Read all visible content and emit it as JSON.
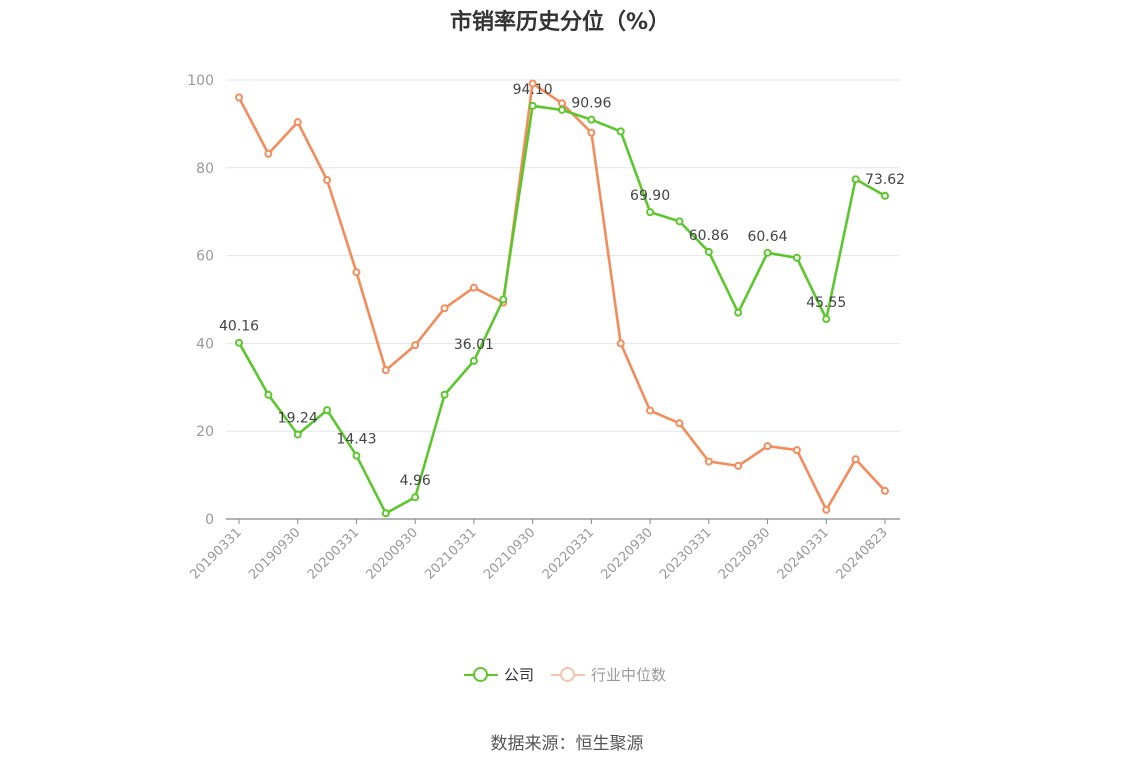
{
  "title": "市销率历史分位（%）",
  "source": "数据来源：恒生聚源",
  "legend": [
    {
      "name": "公司",
      "color": "#5cc72d"
    },
    {
      "name": "行业中位数",
      "color": "#f28c5b"
    }
  ],
  "chart_data": {
    "type": "line",
    "ylim": [
      0,
      100
    ],
    "y_ticks": [
      0,
      20,
      40,
      60,
      80,
      100
    ],
    "x_tick_labels": [
      "20190331",
      "20190930",
      "20200331",
      "20200930",
      "20210331",
      "20210930",
      "20220331",
      "20220930",
      "20230331",
      "20230930",
      "20240331",
      "20240823"
    ],
    "x": [
      "20190331",
      "20190630",
      "20190930",
      "20191231",
      "20200331",
      "20200630",
      "20200930",
      "20201231",
      "20210331",
      "20210630",
      "20210930",
      "20211231",
      "20220331",
      "20220630",
      "20220930",
      "20221231",
      "20230331",
      "20230630",
      "20230930",
      "20231231",
      "20240331",
      "20240630",
      "20240823"
    ],
    "grid": true,
    "legend_position": "bottom",
    "series": [
      {
        "name": "公司",
        "color": "#5cc72d",
        "values": [
          40.16,
          28.3,
          19.24,
          24.8,
          14.43,
          1.3,
          4.96,
          28.3,
          36.01,
          50.0,
          94.1,
          93.2,
          90.96,
          88.3,
          69.9,
          67.8,
          60.86,
          47.0,
          60.64,
          59.5,
          45.55,
          77.4,
          73.62
        ],
        "labels": {
          "0": "40.16",
          "2": "19.24",
          "4": "14.43",
          "6": "4.96",
          "8": "36.01",
          "10": "94.10",
          "12": "90.96",
          "14": "69.90",
          "16": "60.86",
          "18": "60.64",
          "20": "45.55",
          "22": "73.62"
        }
      },
      {
        "name": "行业中位数",
        "color": "#f28c5b",
        "values": [
          96.0,
          83.2,
          90.4,
          77.2,
          56.2,
          33.9,
          39.6,
          48.0,
          52.7,
          49.3,
          99.2,
          94.7,
          88.0,
          40.0,
          24.7,
          21.8,
          13.1,
          12.1,
          16.6,
          15.7,
          2.1,
          13.6,
          6.4
        ]
      }
    ]
  }
}
